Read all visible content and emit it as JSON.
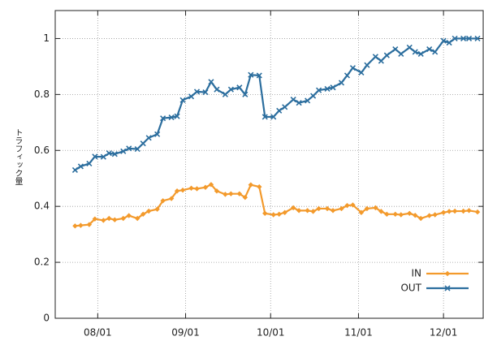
{
  "chart_data": {
    "type": "line",
    "y_label": "トラフィック量",
    "x": [
      "07/24",
      "07/26",
      "07/29",
      "07/31",
      "08/03",
      "08/05",
      "08/07",
      "08/10",
      "08/12",
      "08/15",
      "08/17",
      "08/19",
      "08/22",
      "08/24",
      "08/27",
      "08/29",
      "08/31",
      "09/03",
      "09/05",
      "09/08",
      "09/10",
      "09/12",
      "09/15",
      "09/17",
      "09/20",
      "09/22",
      "09/24",
      "09/27",
      "09/29",
      "10/02",
      "10/04",
      "10/06",
      "10/09",
      "10/11",
      "10/14",
      "10/16",
      "10/18",
      "10/21",
      "10/23",
      "10/26",
      "10/28",
      "10/30",
      "11/02",
      "11/04",
      "11/07",
      "11/09",
      "11/11",
      "11/14",
      "11/16",
      "11/19",
      "11/21",
      "11/23",
      "11/26",
      "11/28",
      "12/01",
      "12/03",
      "12/05",
      "12/08",
      "12/10",
      "12/13"
    ],
    "series": [
      {
        "name": "IN",
        "color": "#f39a2c",
        "marker": "diamond",
        "values": [
          0.33,
          0.332,
          0.335,
          0.355,
          0.35,
          0.357,
          0.352,
          0.357,
          0.367,
          0.357,
          0.372,
          0.383,
          0.39,
          0.42,
          0.428,
          0.455,
          0.458,
          0.465,
          0.463,
          0.468,
          0.478,
          0.455,
          0.443,
          0.445,
          0.445,
          0.432,
          0.477,
          0.47,
          0.375,
          0.37,
          0.372,
          0.378,
          0.395,
          0.385,
          0.385,
          0.382,
          0.392,
          0.392,
          0.385,
          0.392,
          0.403,
          0.405,
          0.378,
          0.392,
          0.395,
          0.382,
          0.372,
          0.372,
          0.37,
          0.375,
          0.368,
          0.357,
          0.367,
          0.37,
          0.378,
          0.382,
          0.383,
          0.383,
          0.385,
          0.38
        ]
      },
      {
        "name": "OUT",
        "color": "#2c6e9e",
        "marker": "cross",
        "values": [
          0.53,
          0.543,
          0.553,
          0.578,
          0.577,
          0.59,
          0.587,
          0.597,
          0.607,
          0.605,
          0.625,
          0.645,
          0.658,
          0.715,
          0.718,
          0.722,
          0.78,
          0.793,
          0.81,
          0.808,
          0.845,
          0.818,
          0.8,
          0.818,
          0.825,
          0.8,
          0.87,
          0.868,
          0.72,
          0.72,
          0.742,
          0.755,
          0.782,
          0.77,
          0.778,
          0.795,
          0.815,
          0.82,
          0.825,
          0.842,
          0.868,
          0.895,
          0.878,
          0.905,
          0.935,
          0.92,
          0.94,
          0.962,
          0.945,
          0.968,
          0.952,
          0.945,
          0.962,
          0.952,
          0.992,
          0.985,
          1.0,
          1.0,
          1.0,
          1.0
        ]
      }
    ],
    "xlim": [
      "07/17",
      "12/15"
    ],
    "xticks": [
      "08/01",
      "09/01",
      "10/01",
      "11/01",
      "12/01"
    ],
    "ylim": [
      0,
      1.1
    ],
    "yticks": [
      0,
      0.2,
      0.4,
      0.6,
      0.8,
      1
    ],
    "grid": true,
    "legend": "lower right"
  }
}
